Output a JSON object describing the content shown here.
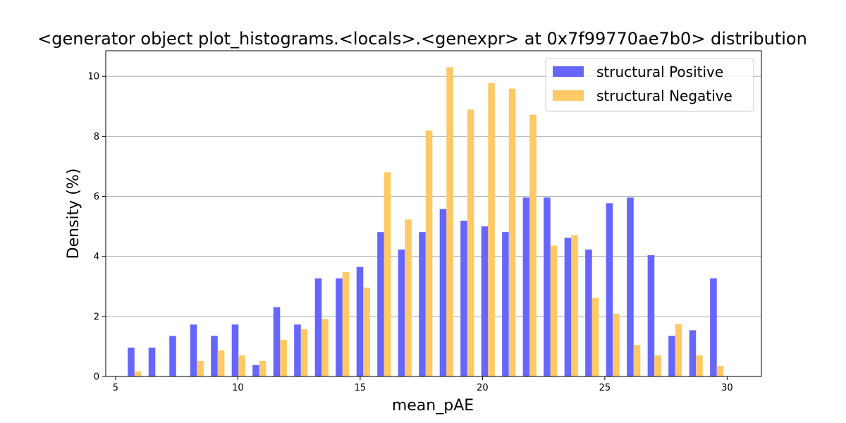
{
  "chart_data": {
    "type": "bar",
    "title": "<generator object plot_histograms.<locals>.<genexpr> at 0x7f99770ae7b0> distribution",
    "xlabel": "mean_pAE",
    "ylabel": "Density (%)",
    "xlim": [
      4.6,
      31.4
    ],
    "ylim": [
      0,
      10.85
    ],
    "x_ticks": [
      5,
      10,
      15,
      20,
      25,
      30
    ],
    "y_ticks": [
      0,
      2,
      4,
      6,
      8,
      10
    ],
    "grid": "horizontal",
    "legend_position": "upper-right",
    "bin_start": 5.5,
    "bin_width": 0.85,
    "series": [
      {
        "name": "structural Positive",
        "color": "#6666ff",
        "values": [
          0.96,
          0.96,
          1.35,
          1.73,
          1.35,
          1.73,
          0.38,
          2.31,
          1.73,
          3.27,
          3.27,
          3.65,
          4.81,
          4.23,
          4.81,
          5.58,
          5.19,
          5.0,
          4.81,
          5.96,
          5.96,
          4.62,
          4.23,
          5.77,
          5.96,
          4.04,
          1.35,
          1.54,
          3.27
        ]
      },
      {
        "name": "structural Negative",
        "color": "#ffc966",
        "values": [
          0.17,
          0.0,
          0.0,
          0.52,
          0.87,
          0.7,
          0.52,
          1.22,
          1.57,
          1.91,
          3.48,
          2.96,
          6.8,
          5.23,
          8.19,
          10.3,
          8.89,
          9.77,
          9.59,
          8.72,
          4.36,
          4.71,
          2.62,
          2.09,
          1.05,
          0.7,
          1.74,
          0.7,
          0.35
        ]
      }
    ]
  }
}
